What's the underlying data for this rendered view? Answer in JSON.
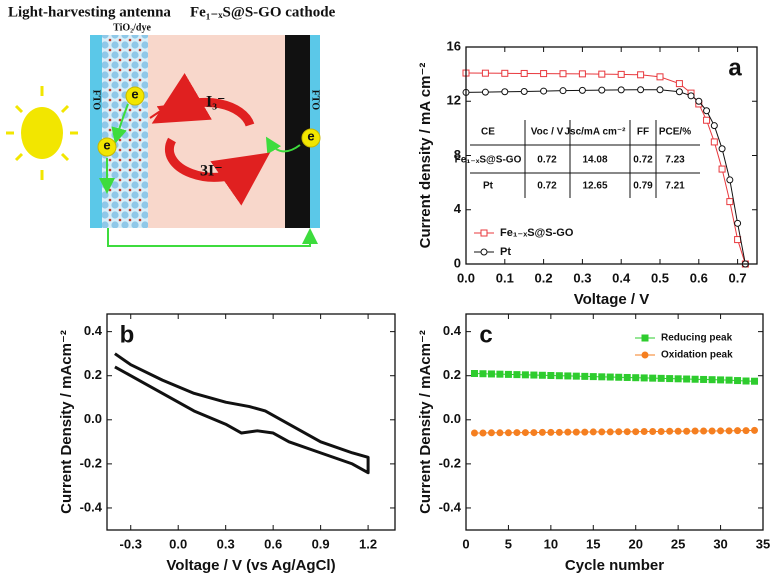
{
  "schematic": {
    "title_left": "Light-harvesting antenna",
    "title_right": "Fe₁₋ₓS@S-GO cathode",
    "tio2_label": "TiO₂/dye",
    "fto_left": "FTO",
    "fto_right": "FTO",
    "electron_labels": [
      "e",
      "e",
      "e"
    ],
    "triiodide": "I₃⁻",
    "iodide": "3I⁻"
  },
  "chart_data": [
    {
      "type": "line",
      "annotation": "a",
      "x_label": "Voltage / V",
      "y_label": "Current density / mA cm⁻²",
      "xlim": [
        0,
        0.75
      ],
      "ylim": [
        0,
        16
      ],
      "xticks": [
        {
          "value": 0,
          "label": "0.0"
        },
        0.1,
        0.2,
        0.3,
        0.4,
        0.5,
        0.6,
        0.7
      ],
      "yticks": [
        0,
        4,
        8,
        12,
        16
      ],
      "x": [
        0,
        0.05,
        0.1,
        0.15,
        0.2,
        0.25,
        0.3,
        0.35,
        0.4,
        0.45,
        0.5,
        0.55,
        0.58,
        0.6,
        0.62,
        0.64,
        0.66,
        0.68,
        0.7,
        0.72
      ],
      "series": [
        {
          "name": "Fe₁₋ₓS@S-GO",
          "color": "#e8383d",
          "marker": "open-square",
          "values": [
            14.08,
            14.07,
            14.06,
            14.05,
            14.04,
            14.03,
            14.02,
            14.0,
            13.98,
            13.95,
            13.8,
            13.3,
            12.6,
            11.8,
            10.6,
            9.0,
            7.0,
            4.6,
            1.8,
            0
          ]
        },
        {
          "name": "Pt",
          "color": "#111111",
          "marker": "open-circle",
          "values": [
            12.65,
            12.67,
            12.7,
            12.72,
            12.75,
            12.78,
            12.8,
            12.82,
            12.84,
            12.85,
            12.85,
            12.7,
            12.4,
            12.0,
            11.3,
            10.2,
            8.5,
            6.2,
            3.0,
            0
          ]
        }
      ],
      "legend": "lower left",
      "table": {
        "columns": [
          "CE",
          "Voc / V",
          "Jsc/mA cm⁻²",
          "FF",
          "PCE/%"
        ],
        "rows": [
          [
            "Fe₁₋ₓS@S-GO",
            0.72,
            14.08,
            0.72,
            7.23
          ],
          [
            "Pt",
            0.72,
            12.65,
            0.79,
            7.21
          ]
        ]
      }
    },
    {
      "type": "line",
      "annotation": "b",
      "x_label": "Voltage / V (vs Ag/AgCl)",
      "y_label": "Current Density / mAcm⁻²",
      "xlim": [
        -0.45,
        1.37
      ],
      "ylim": [
        -0.5,
        0.48
      ],
      "xticks": [
        -0.3,
        {
          "value": 0,
          "label": "0.0"
        },
        0.3,
        0.6,
        0.9,
        1.2
      ],
      "yticks": [
        -0.4,
        -0.2,
        {
          "value": 0,
          "label": "0.0"
        },
        0.2,
        0.4
      ],
      "x": [
        -0.4,
        -0.3,
        -0.1,
        0.1,
        0.3,
        0.45,
        0.55,
        0.7,
        0.9,
        1.1,
        1.2,
        1.2,
        1.1,
        0.9,
        0.7,
        0.6,
        0.5,
        0.4,
        0.3,
        0.1,
        -0.1,
        -0.3,
        -0.4
      ],
      "series": [
        {
          "color": "#111111",
          "values": [
            0.3,
            0.25,
            0.18,
            0.12,
            0.08,
            0.06,
            0.04,
            -0.02,
            -0.1,
            -0.15,
            -0.17,
            -0.24,
            -0.2,
            -0.15,
            -0.1,
            -0.06,
            -0.05,
            -0.06,
            -0.02,
            0.04,
            0.12,
            0.2,
            0.24
          ]
        }
      ]
    },
    {
      "type": "line",
      "annotation": "c",
      "x_label": "Cycle  number",
      "y_label": "Current Density / mAcm⁻²",
      "xlim": [
        0,
        35
      ],
      "ylim": [
        -0.5,
        0.48
      ],
      "xticks": [
        0,
        5,
        10,
        15,
        20,
        25,
        30,
        35
      ],
      "yticks": [
        -0.4,
        -0.2,
        {
          "value": 0,
          "label": "0.0"
        },
        0.2,
        0.4
      ],
      "x": [
        1,
        2,
        3,
        4,
        5,
        6,
        7,
        8,
        9,
        10,
        11,
        12,
        13,
        14,
        15,
        16,
        17,
        18,
        19,
        20,
        21,
        22,
        23,
        24,
        25,
        26,
        27,
        28,
        29,
        30,
        31,
        32,
        33,
        34
      ],
      "series": [
        {
          "name": "Reducing peak",
          "color": "#2ecc2e",
          "marker": "filled-square",
          "values": [
            0.21,
            0.209,
            0.208,
            0.207,
            0.206,
            0.205,
            0.204,
            0.203,
            0.202,
            0.201,
            0.2,
            0.199,
            0.198,
            0.197,
            0.196,
            0.195,
            0.194,
            0.193,
            0.192,
            0.191,
            0.19,
            0.189,
            0.188,
            0.187,
            0.186,
            0.185,
            0.184,
            0.183,
            0.182,
            0.181,
            0.18,
            0.178,
            0.176,
            0.175
          ]
        },
        {
          "name": "Oxidation peak",
          "color": "#f57f20",
          "marker": "filled-circle",
          "values": [
            -0.06,
            -0.06,
            -0.059,
            -0.059,
            -0.059,
            -0.058,
            -0.058,
            -0.058,
            -0.057,
            -0.057,
            -0.057,
            -0.056,
            -0.056,
            -0.056,
            -0.055,
            -0.055,
            -0.055,
            -0.054,
            -0.054,
            -0.054,
            -0.053,
            -0.053,
            -0.053,
            -0.052,
            -0.052,
            -0.052,
            -0.051,
            -0.051,
            -0.051,
            -0.05,
            -0.05,
            -0.049,
            -0.049,
            -0.048
          ]
        }
      ],
      "legend": "upper right"
    }
  ]
}
